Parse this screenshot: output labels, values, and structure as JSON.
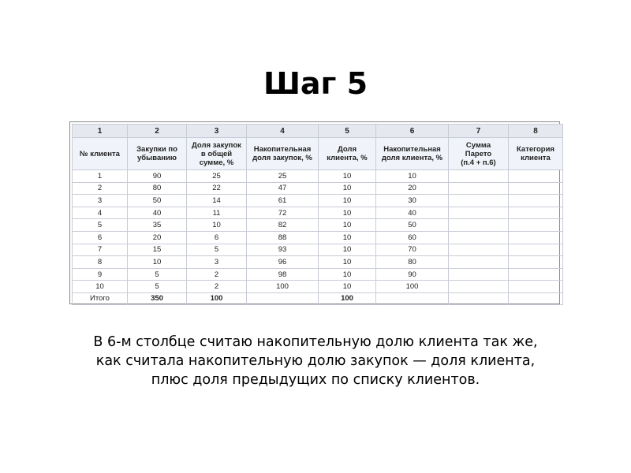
{
  "slide": {
    "title": "Шаг 5",
    "caption_lines": [
      "В 6-м столбце считаю накопительную долю клиента так же,",
      "как считала накопительную долю закупок — доля клиента,",
      "плюс доля предыдущих по списку клиентов."
    ]
  },
  "table": {
    "column_numbers": [
      "1",
      "2",
      "3",
      "4",
      "5",
      "6",
      "7",
      "8"
    ],
    "headers": [
      [
        "№ клиента"
      ],
      [
        "Закупки по",
        "убыванию"
      ],
      [
        "Доля закупок",
        "в общей",
        "сумме, %"
      ],
      [
        "Накопительная",
        "доля закупок, %"
      ],
      [
        "Доля",
        "клиента, %"
      ],
      [
        "Накопительная",
        "доля клиента, %"
      ],
      [
        "Сумма",
        "Парето",
        "(п.4 + п.6)"
      ],
      [
        "Категория",
        "клиента"
      ]
    ],
    "rows": [
      [
        "1",
        "90",
        "25",
        "25",
        "10",
        "10",
        "",
        ""
      ],
      [
        "2",
        "80",
        "22",
        "47",
        "10",
        "20",
        "",
        ""
      ],
      [
        "3",
        "50",
        "14",
        "61",
        "10",
        "30",
        "",
        ""
      ],
      [
        "4",
        "40",
        "11",
        "72",
        "10",
        "40",
        "",
        ""
      ],
      [
        "5",
        "35",
        "10",
        "82",
        "10",
        "50",
        "",
        ""
      ],
      [
        "6",
        "20",
        "6",
        "88",
        "10",
        "60",
        "",
        ""
      ],
      [
        "7",
        "15",
        "5",
        "93",
        "10",
        "70",
        "",
        ""
      ],
      [
        "8",
        "10",
        "3",
        "96",
        "10",
        "80",
        "",
        ""
      ],
      [
        "9",
        "5",
        "2",
        "98",
        "10",
        "90",
        "",
        ""
      ],
      [
        "10",
        "5",
        "2",
        "100",
        "10",
        "100",
        "",
        ""
      ]
    ],
    "total": [
      "Итого",
      "350",
      "100",
      "",
      "100",
      "",
      "",
      ""
    ]
  }
}
